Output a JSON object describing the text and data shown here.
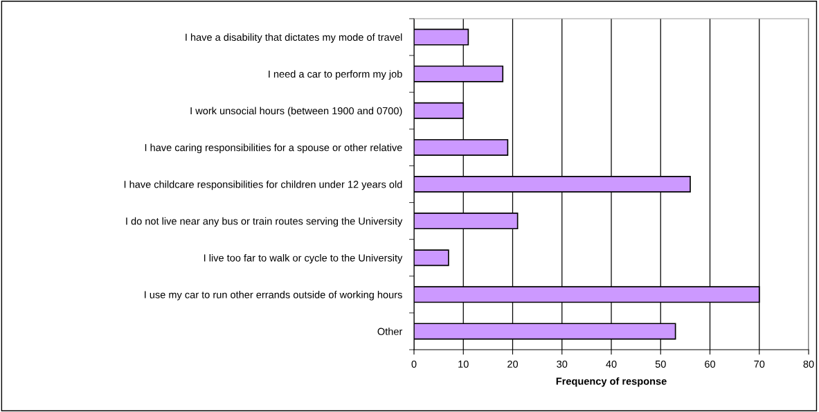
{
  "chart_data": {
    "type": "bar",
    "orientation": "horizontal",
    "xlabel": "Frequency of response",
    "categories": [
      "I have a disability that dictates my mode of travel",
      "I need a car to perform my job",
      "I work unsocial hours (between 1900 and 0700)",
      "I have caring responsibilities for a spouse or other relative",
      "I have childcare responsibilities for children under 12 years old",
      "I do not live near any bus or train routes serving the University",
      "I live too far to walk or cycle to the University",
      "I use my car to run other errands outside of working hours",
      "Other"
    ],
    "values": [
      11,
      18,
      10,
      19,
      56,
      21,
      7,
      70,
      53
    ],
    "color": "#cc99ff",
    "xlim": [
      0,
      80
    ],
    "xticks": [
      0,
      10,
      20,
      30,
      40,
      50,
      60,
      70,
      80
    ],
    "grid": "x"
  }
}
